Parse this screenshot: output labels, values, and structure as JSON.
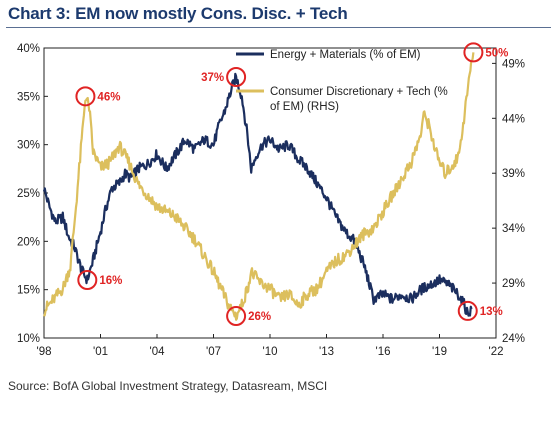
{
  "title": "Chart 3: EM now mostly Cons. Disc. + Tech",
  "source": "Source: BofA Global Investment Strategy, Datasream, MSCI",
  "colors": {
    "energy": "#1b2e5e",
    "cdtech": "#dcbf5d",
    "annotation": "#e02424",
    "title": "#1c3a6e"
  },
  "chart_data": {
    "type": "line",
    "title": "Chart 3: EM now mostly Cons. Disc. + Tech",
    "xlabel": "",
    "ylabel": "",
    "x_ticks": [
      "'98",
      "'01",
      "'04",
      "'07",
      "'10",
      "'13",
      "'16",
      "'19",
      "'22"
    ],
    "x_range": [
      1998,
      2022
    ],
    "y_left": {
      "ticks": [
        "10%",
        "15%",
        "20%",
        "25%",
        "30%",
        "35%",
        "40%"
      ],
      "range": [
        10,
        40
      ]
    },
    "y_right": {
      "ticks": [
        "24%",
        "29%",
        "34%",
        "39%",
        "44%",
        "49%"
      ],
      "range": [
        24,
        50.4
      ]
    },
    "legend": {
      "position": "top-right"
    },
    "grid": false,
    "series": [
      {
        "name": "Energy + Materials (% of EM)",
        "axis": "left",
        "color": "#1b2e5e",
        "x": [
          1998.0,
          1998.3,
          1998.6,
          1999.0,
          1999.3,
          1999.6,
          2000.0,
          2000.3,
          2000.6,
          2001.0,
          2001.3,
          2001.6,
          2002.0,
          2002.3,
          2002.6,
          2003.0,
          2003.5,
          2004.0,
          2004.5,
          2005.0,
          2005.5,
          2006.0,
          2006.5,
          2007.0,
          2007.3,
          2007.6,
          2008.0,
          2008.2,
          2008.5,
          2008.8,
          2009.0,
          2009.3,
          2009.6,
          2010.0,
          2010.5,
          2011.0,
          2011.5,
          2012.0,
          2012.5,
          2013.0,
          2013.5,
          2014.0,
          2014.5,
          2015.0,
          2015.5,
          2016.0,
          2016.5,
          2017.0,
          2017.5,
          2018.0,
          2018.5,
          2019.0,
          2019.5,
          2020.0,
          2020.3,
          2020.5,
          2020.7
        ],
        "y": [
          25.5,
          23.5,
          22.0,
          22.5,
          20.5,
          19.5,
          17.0,
          16.0,
          18.0,
          21.0,
          23.5,
          25.5,
          26.0,
          27.0,
          26.5,
          27.5,
          28.0,
          29.0,
          27.5,
          29.0,
          30.5,
          29.5,
          30.5,
          30.0,
          32.0,
          33.5,
          36.0,
          37.0,
          35.0,
          31.0,
          27.5,
          29.0,
          30.0,
          30.5,
          29.5,
          30.0,
          28.5,
          27.5,
          26.0,
          24.5,
          22.5,
          21.0,
          20.0,
          17.5,
          14.0,
          14.5,
          14.0,
          14.5,
          14.0,
          15.0,
          15.5,
          16.0,
          15.5,
          14.5,
          13.5,
          12.5,
          13.0
        ]
      },
      {
        "name": "Consumer Discretionary + Tech (% of EM) (RHS)",
        "axis": "right",
        "color": "#dcbf5d",
        "x": [
          1998.0,
          1998.5,
          1999.0,
          1999.4,
          1999.7,
          2000.0,
          2000.2,
          2000.4,
          2000.6,
          2001.0,
          2001.5,
          2002.0,
          2002.5,
          2003.0,
          2003.5,
          2004.0,
          2004.5,
          2005.0,
          2005.5,
          2006.0,
          2006.5,
          2007.0,
          2007.4,
          2007.8,
          2008.2,
          2008.5,
          2008.8,
          2009.0,
          2009.5,
          2010.0,
          2010.5,
          2011.0,
          2011.5,
          2012.0,
          2012.5,
          2013.0,
          2013.5,
          2014.0,
          2014.5,
          2015.0,
          2015.5,
          2016.0,
          2016.5,
          2017.0,
          2017.5,
          2018.0,
          2018.2,
          2018.5,
          2018.8,
          2019.0,
          2019.3,
          2019.6,
          2020.0,
          2020.3,
          2020.6,
          2020.8
        ],
        "y": [
          26.5,
          27.5,
          28.5,
          30.5,
          36.0,
          42.0,
          46.0,
          45.0,
          41.0,
          39.5,
          40.0,
          41.5,
          40.0,
          38.0,
          37.0,
          36.0,
          35.5,
          35.0,
          34.0,
          33.0,
          31.5,
          30.0,
          28.5,
          27.0,
          26.0,
          27.0,
          28.5,
          30.0,
          29.0,
          28.5,
          27.5,
          28.0,
          27.0,
          28.0,
          28.5,
          30.0,
          31.0,
          31.5,
          32.5,
          33.5,
          34.0,
          35.5,
          37.0,
          38.5,
          40.0,
          42.5,
          44.5,
          43.0,
          41.0,
          40.0,
          39.0,
          39.5,
          40.5,
          44.0,
          48.0,
          50.0
        ]
      }
    ],
    "annotations": [
      {
        "text": "46%",
        "series": 1,
        "x": 2000.2,
        "y": 46.0,
        "label_side": "right"
      },
      {
        "text": "16%",
        "series": 0,
        "x": 2000.3,
        "y": 16.0,
        "label_side": "right"
      },
      {
        "text": "37%",
        "series": 0,
        "x": 2008.2,
        "y": 37.0,
        "label_side": "left"
      },
      {
        "text": "26%",
        "series": 1,
        "x": 2008.2,
        "y": 26.0,
        "label_side": "right"
      },
      {
        "text": "50%",
        "series": 1,
        "x": 2020.8,
        "y": 50.0,
        "label_side": "right"
      },
      {
        "text": "13%",
        "series": 0,
        "x": 2020.5,
        "y": 12.8,
        "label_side": "right"
      }
    ]
  }
}
